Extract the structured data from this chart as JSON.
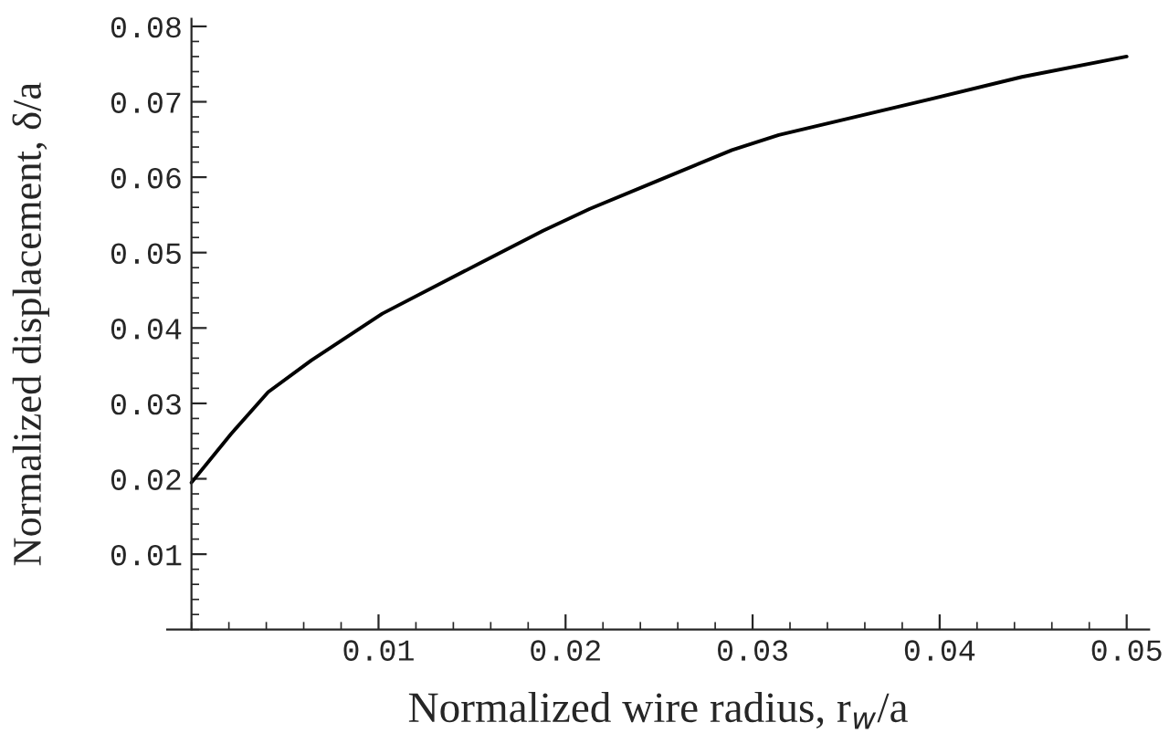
{
  "chart_data": {
    "type": "line",
    "xlabel": "Normalized wire radius, r$_{w}$/a",
    "ylabel": "Normalized displacement, δ/a",
    "x": [
      0,
      0.0021,
      0.0041,
      0.0064,
      0.0102,
      0.0155,
      0.0188,
      0.0213,
      0.025,
      0.0289,
      0.0314,
      0.0379,
      0.0444,
      0.05
    ],
    "series": [
      {
        "color": "#000000",
        "values": [
          0.0195,
          0.0259,
          0.0315,
          0.0357,
          0.0419,
          0.0487,
          0.0529,
          0.0558,
          0.0596,
          0.0636,
          0.0656,
          0.0694,
          0.0733,
          0.076
        ]
      }
    ],
    "xlim": [
      -0.0013,
      0.0512
    ],
    "ylim": [
      0,
      0.081
    ],
    "xticks": [
      0.01,
      0.02,
      0.03,
      0.04,
      0.05
    ],
    "yticks": [
      0.01,
      0.02,
      0.03,
      0.04,
      0.05,
      0.06,
      0.07,
      0.08
    ],
    "grid": false,
    "legend": false,
    "marker": "none",
    "line_style": "solid"
  }
}
